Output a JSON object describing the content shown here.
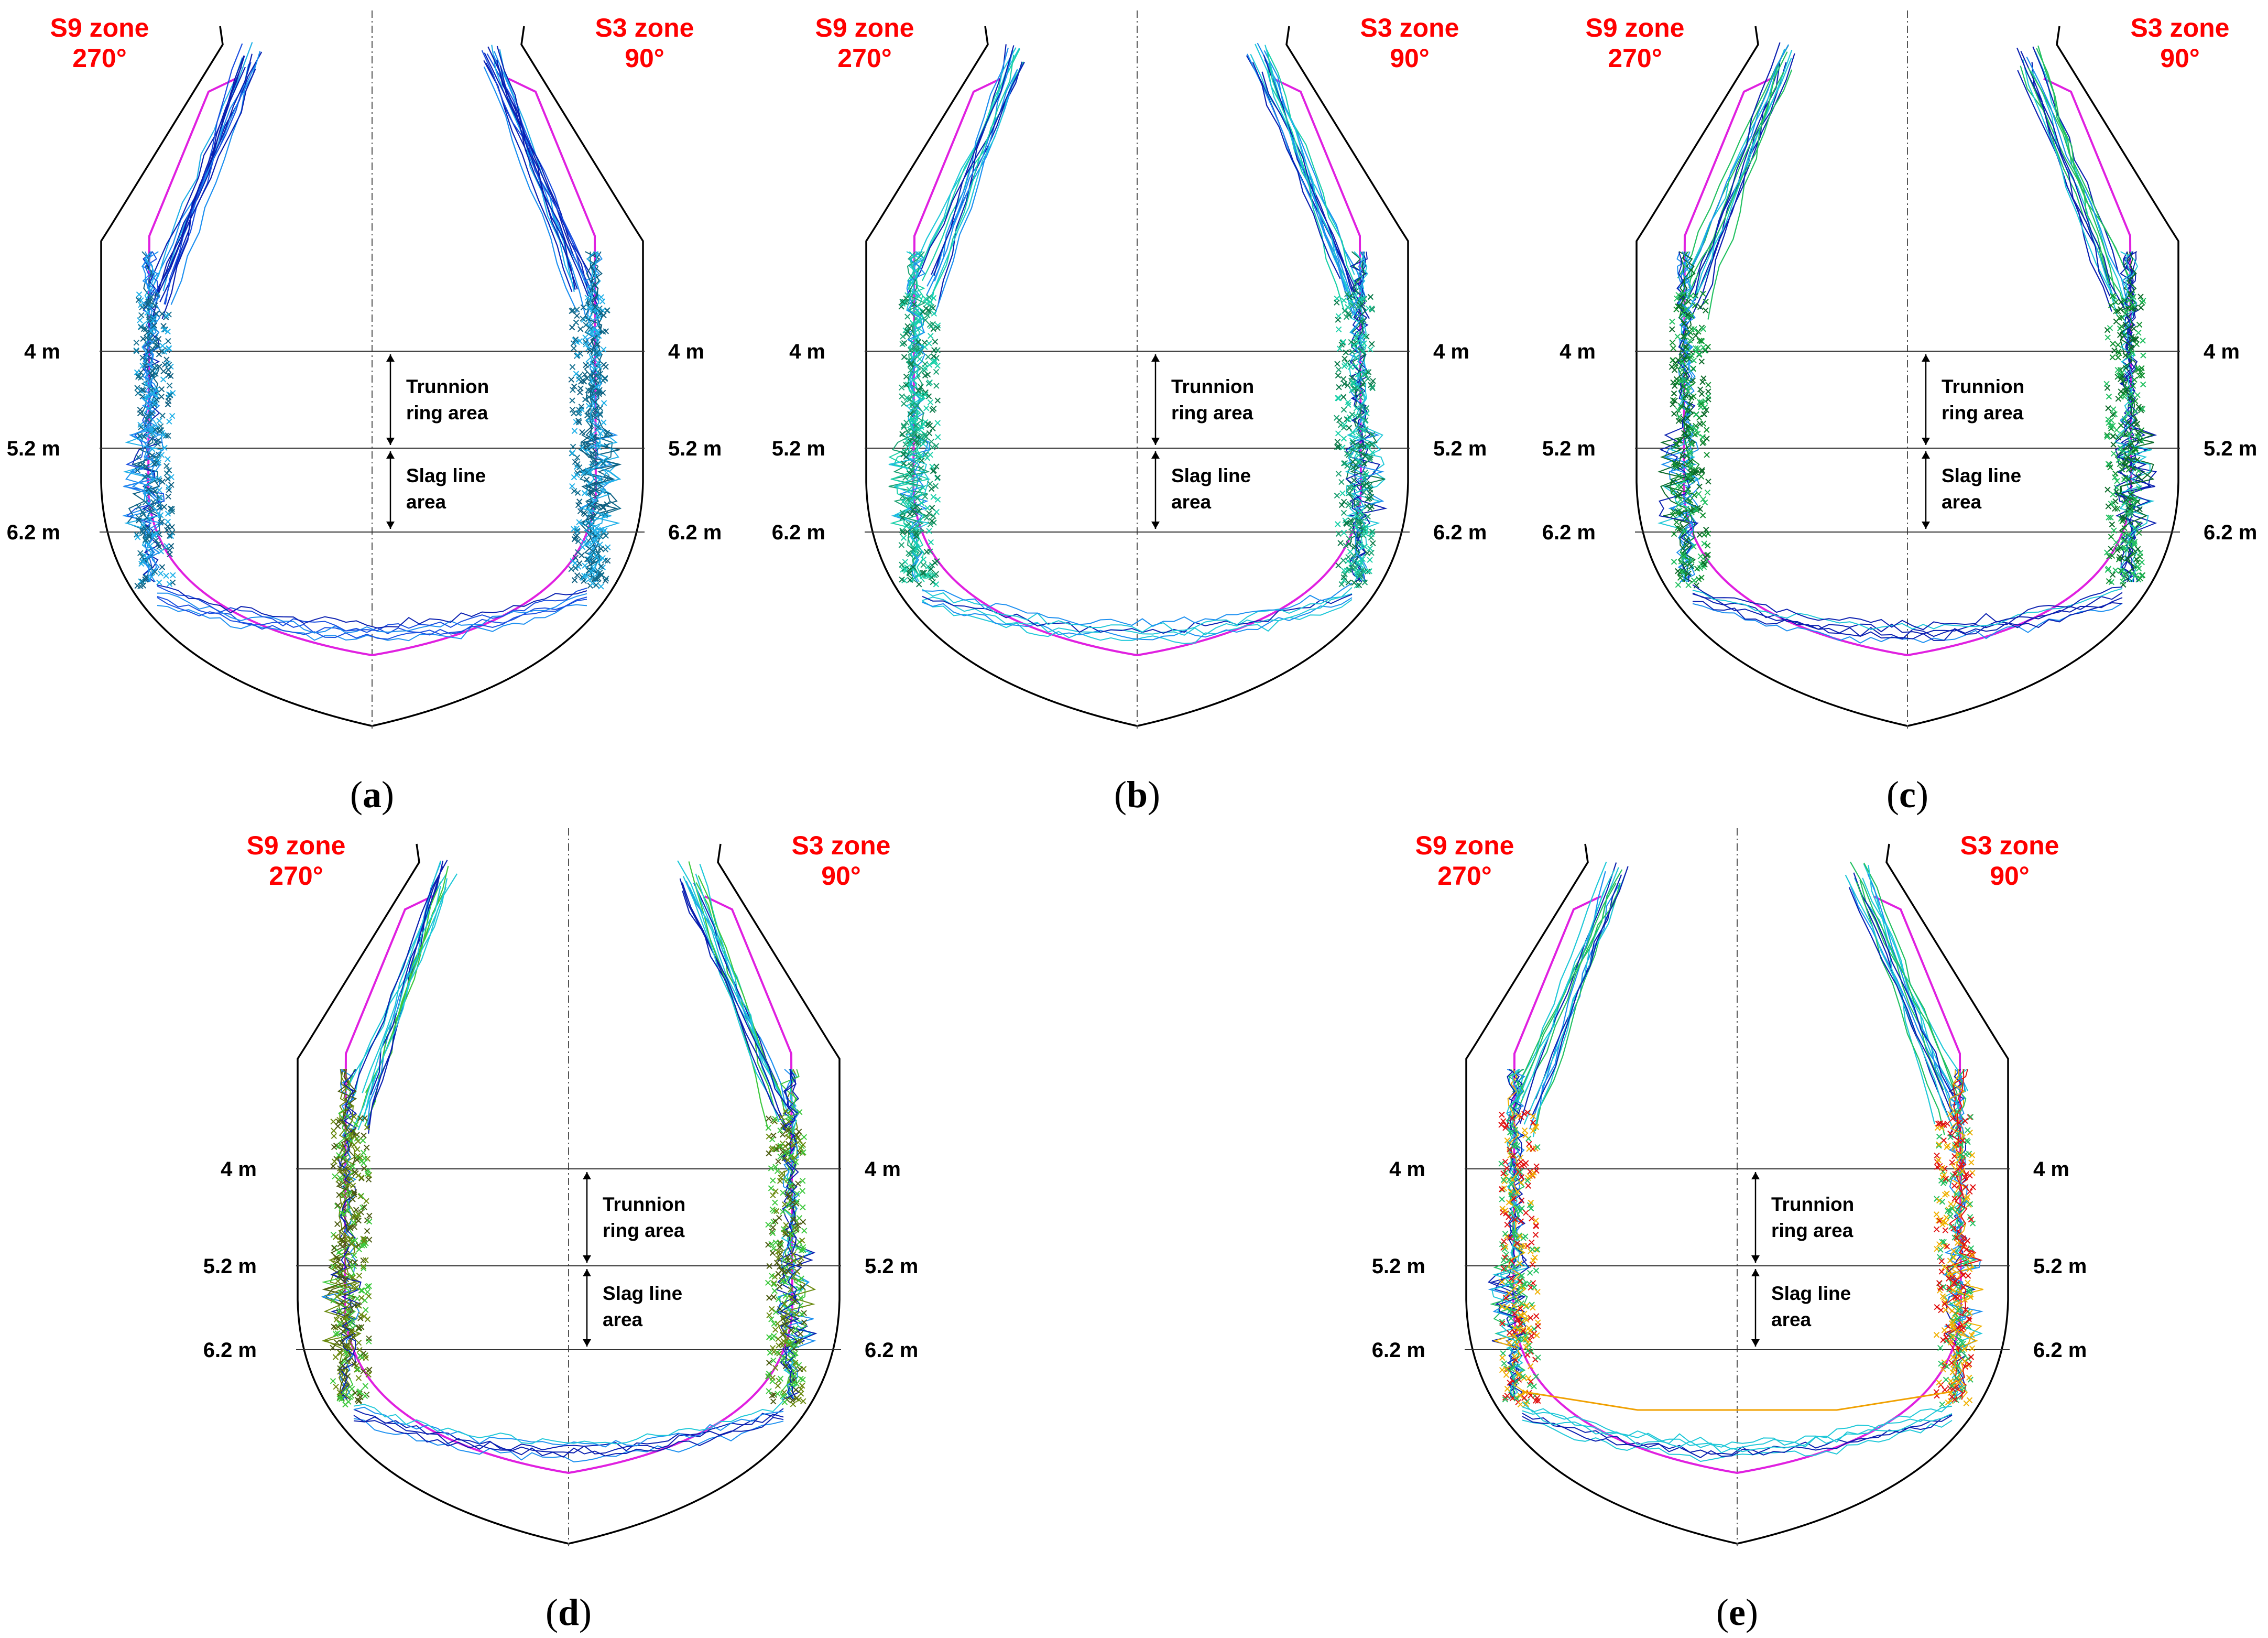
{
  "panels": [
    {
      "id": "a",
      "caption": "(a)",
      "caption_letter": "a",
      "zone_left": [
        "S9 zone",
        "270°"
      ],
      "zone_right": [
        "S3 zone",
        "90°"
      ],
      "depth_labels": [
        "4 m",
        "5.2 m",
        "6.2 m"
      ],
      "area_labels": {
        "trunnion": [
          "Trunnion",
          "ring area"
        ],
        "slag": [
          "Slag line",
          "area"
        ]
      },
      "palette": [
        "#0a1fb0",
        "#1a4fe0",
        "#1c8ff0",
        "#1fb0e8",
        "#157090",
        "#0e5f80"
      ],
      "has_red": false
    },
    {
      "id": "b",
      "caption": "(b)",
      "caption_letter": "b",
      "zone_left": [
        "S9 zone",
        "270°"
      ],
      "zone_right": [
        "S3 zone",
        "90°"
      ],
      "depth_labels": [
        "4 m",
        "5.2 m",
        "6.2 m"
      ],
      "area_labels": {
        "trunnion": [
          "Trunnion",
          "ring area"
        ],
        "slag": [
          "Slag line",
          "area"
        ]
      },
      "palette": [
        "#0a1fb0",
        "#1c8ff0",
        "#1fc8d8",
        "#19d0a8",
        "#1aa070",
        "#0c7a4a"
      ],
      "has_red": false
    },
    {
      "id": "c",
      "caption": "(c)",
      "caption_letter": "c",
      "zone_left": [
        "S9 zone",
        "270°"
      ],
      "zone_right": [
        "S3 zone",
        "90°"
      ],
      "depth_labels": [
        "4 m",
        "5.2 m",
        "6.2 m"
      ],
      "area_labels": {
        "trunnion": [
          "Trunnion",
          "ring area"
        ],
        "slag": [
          "Slag line",
          "area"
        ]
      },
      "palette": [
        "#0a1fb0",
        "#1c8ff0",
        "#1fc8d8",
        "#22c060",
        "#109030",
        "#0b6a28"
      ],
      "has_red": false
    },
    {
      "id": "d",
      "caption": "(d)",
      "caption_letter": "d",
      "zone_left": [
        "S9 zone",
        "270°"
      ],
      "zone_right": [
        "S3 zone",
        "90°"
      ],
      "depth_labels": [
        "4 m",
        "5.2 m",
        "6.2 m"
      ],
      "area_labels": {
        "trunnion": [
          "Trunnion",
          "ring area"
        ],
        "slag": [
          "Slag line",
          "area"
        ]
      },
      "palette": [
        "#0a1fb0",
        "#1c8ff0",
        "#1fc8d8",
        "#3cc83c",
        "#6a8a10",
        "#4a5a10"
      ],
      "has_red": false
    },
    {
      "id": "e",
      "caption": "(e)",
      "caption_letter": "e",
      "zone_left": [
        "S9 zone",
        "270°"
      ],
      "zone_right": [
        "S3 zone",
        "90°"
      ],
      "depth_labels": [
        "4 m",
        "5.2 m",
        "6.2 m"
      ],
      "area_labels": {
        "trunnion": [
          "Trunnion",
          "ring area"
        ],
        "slag": [
          "Slag line",
          "area"
        ]
      },
      "palette": [
        "#0a1fb0",
        "#1c8ff0",
        "#1fc8d8",
        "#22c060",
        "#f0b000",
        "#e01010"
      ],
      "has_red": true
    }
  ]
}
